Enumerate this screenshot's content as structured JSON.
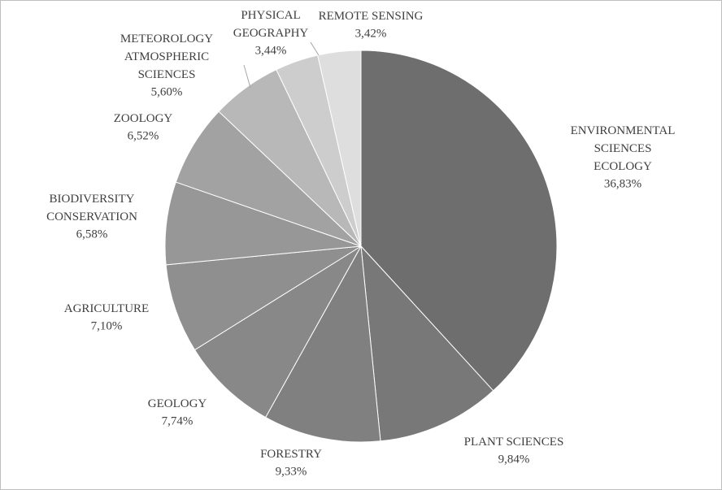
{
  "chart_data": {
    "type": "pie",
    "categories": [
      "ENVIRONMENTAL\nSCIENCES\nECOLOGY",
      "PLANT SCIENCES",
      "FORESTRY",
      "GEOLOGY",
      "AGRICULTURE",
      "BIODIVERSITY\nCONSERVATION",
      "ZOOLOGY",
      "METEOROLOGY\nATMOSPHERIC\nSCIENCES",
      "PHYSICAL\nGEOGRAPHY",
      "REMOTE SENSING"
    ],
    "values": [
      36.83,
      9.84,
      9.33,
      7.74,
      7.1,
      6.58,
      6.52,
      5.6,
      3.44,
      3.42
    ],
    "value_labels": [
      "36,83%",
      "9,84%",
      "9,33%",
      "7,74%",
      "7,10%",
      "6,58%",
      "6,52%",
      "5,60%",
      "3,44%",
      "3,42%"
    ],
    "colors": [
      "#6e6e6e",
      "#787878",
      "#808080",
      "#888888",
      "#8f8f8f",
      "#979797",
      "#a2a2a2",
      "#b8b8b8",
      "#cdcdcd",
      "#dedede"
    ]
  }
}
